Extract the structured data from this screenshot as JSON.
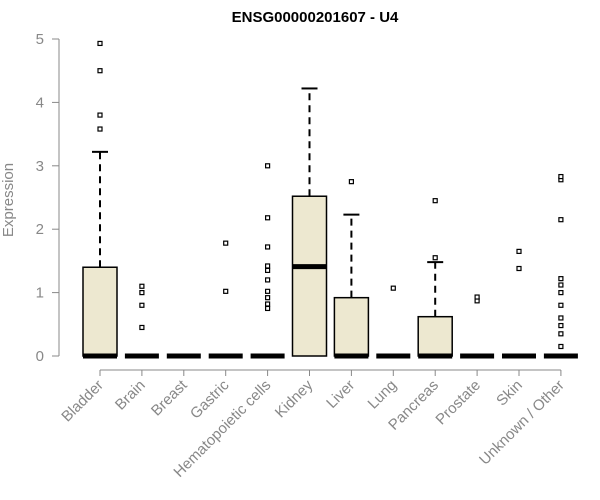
{
  "chart_data": {
    "type": "boxplot",
    "title": "ENSG00000201607 - U4",
    "ylabel": "Expression",
    "xlabel": "",
    "ylim": [
      0,
      5
    ],
    "yticks": [
      "0",
      "1",
      "2",
      "3",
      "4",
      "5"
    ],
    "grid": false,
    "colors": {
      "box_fill": "#ede8d0",
      "box_stroke": "#000000",
      "axis": "#888888",
      "tick_text": "#888888",
      "title": "#000000"
    },
    "categories": [
      "Bladder",
      "Brain",
      "Breast",
      "Gastric",
      "Hematopoietic cells",
      "Kidney",
      "Liver",
      "Lung",
      "Pancreas",
      "Prostate",
      "Skin",
      "Unknown / Other"
    ],
    "boxes": [
      {
        "category": "Bladder",
        "q1": 0,
        "median": 0,
        "q3": 1.4,
        "whisker_low": 0,
        "whisker_high": 3.22,
        "outliers": [
          3.58,
          3.8,
          4.5,
          4.93
        ]
      },
      {
        "category": "Brain",
        "q1": 0,
        "median": 0,
        "q3": 0,
        "whisker_low": 0,
        "whisker_high": 0,
        "outliers": [
          0.45,
          0.8,
          1.0,
          1.1
        ]
      },
      {
        "category": "Breast",
        "q1": 0,
        "median": 0,
        "q3": 0,
        "whisker_low": 0,
        "whisker_high": 0,
        "outliers": []
      },
      {
        "category": "Gastric",
        "q1": 0,
        "median": 0,
        "q3": 0,
        "whisker_low": 0,
        "whisker_high": 0,
        "outliers": [
          1.02,
          1.78
        ]
      },
      {
        "category": "Hematopoietic cells",
        "q1": 0,
        "median": 0,
        "q3": 0,
        "whisker_low": 0,
        "whisker_high": 0,
        "outliers": [
          0.75,
          0.82,
          0.92,
          1.02,
          1.2,
          1.35,
          1.42,
          1.72,
          2.18,
          3.0
        ]
      },
      {
        "category": "Kidney",
        "q1": 0,
        "median": 1.41,
        "q3": 2.52,
        "whisker_low": 0,
        "whisker_high": 4.22,
        "outliers": []
      },
      {
        "category": "Liver",
        "q1": 0,
        "median": 0,
        "q3": 0.92,
        "whisker_low": 0,
        "whisker_high": 2.23,
        "outliers": [
          2.75
        ]
      },
      {
        "category": "Lung",
        "q1": 0,
        "median": 0,
        "q3": 0,
        "whisker_low": 0,
        "whisker_high": 0,
        "outliers": [
          1.07
        ]
      },
      {
        "category": "Pancreas",
        "q1": 0,
        "median": 0,
        "q3": 0.62,
        "whisker_low": 0,
        "whisker_high": 1.48,
        "outliers": [
          1.55,
          2.45
        ]
      },
      {
        "category": "Prostate",
        "q1": 0,
        "median": 0,
        "q3": 0,
        "whisker_low": 0,
        "whisker_high": 0,
        "outliers": [
          0.87,
          0.93
        ]
      },
      {
        "category": "Skin",
        "q1": 0,
        "median": 0,
        "q3": 0,
        "whisker_low": 0,
        "whisker_high": 0,
        "outliers": [
          1.38,
          1.65
        ]
      },
      {
        "category": "Unknown / Other",
        "q1": 0,
        "median": 0,
        "q3": 0,
        "whisker_low": 0,
        "whisker_high": 0,
        "outliers": [
          0.15,
          0.35,
          0.48,
          0.6,
          0.8,
          1.0,
          1.12,
          1.22,
          2.15,
          2.78,
          2.83
        ]
      }
    ]
  }
}
